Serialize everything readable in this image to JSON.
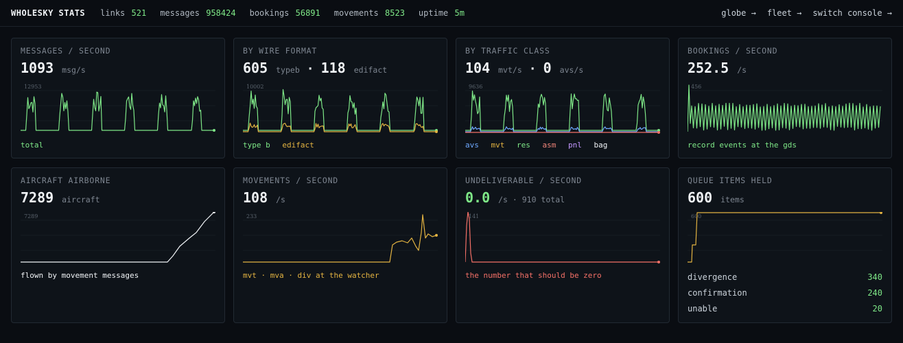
{
  "topbar": {
    "brand": "WHOLESKY STATS",
    "stats": [
      {
        "label": "links",
        "value": "521"
      },
      {
        "label": "messages",
        "value": "958424"
      },
      {
        "label": "bookings",
        "value": "56891"
      },
      {
        "label": "movements",
        "value": "8523"
      },
      {
        "label": "uptime",
        "value": "5m"
      }
    ],
    "nav": [
      "globe →",
      "fleet →",
      "switch console →"
    ]
  },
  "cards": {
    "messages": {
      "title": "MESSAGES / SECOND",
      "value": "1093",
      "unit": "msg/s",
      "ymax": "12953",
      "legend": [
        "total"
      ]
    },
    "wire": {
      "title": "BY WIRE FORMAT",
      "value1": "605",
      "unit1": "typeb",
      "sep": "·",
      "value2": "118",
      "unit2": "edifact",
      "ymax": "10002",
      "legend": [
        "type b",
        "edifact"
      ]
    },
    "traffic": {
      "title": "BY TRAFFIC CLASS",
      "value1": "104",
      "unit1": "mvt/s",
      "sep": "·",
      "value2": "0",
      "unit2": "avs/s",
      "ymax": "9636",
      "legend": [
        "avs",
        "mvt",
        "res",
        "asm",
        "pnl",
        "bag"
      ]
    },
    "bookings": {
      "title": "BOOKINGS / SECOND",
      "value": "252.5",
      "unit": "/s",
      "ymax": "456",
      "legend": [
        "record events at the gds"
      ]
    },
    "aircraft": {
      "title": "AIRCRAFT AIRBORNE",
      "value": "7289",
      "unit": "aircraft",
      "ymax": "7289",
      "legend": [
        "flown by movement messages"
      ]
    },
    "movements": {
      "title": "MOVEMENTS / SECOND",
      "value": "108",
      "unit": "/s",
      "ymax": "233",
      "legend": [
        "mvt · mva · div at the watcher"
      ]
    },
    "undeliverable": {
      "title": "UNDELIVERABLE / SECOND",
      "value": "0.0",
      "unit": "/s · 910 total",
      "ymax": "141",
      "legend": [
        "the number that should be zero"
      ]
    },
    "queue": {
      "title": "QUEUE ITEMS HELD",
      "value": "600",
      "unit": "items",
      "ymax": "600",
      "rows": [
        {
          "label": "divergence",
          "value": "340"
        },
        {
          "label": "confirmation",
          "value": "240"
        },
        {
          "label": "unable",
          "value": "20"
        }
      ]
    }
  },
  "colors": {
    "green": "#7ee787",
    "yellow": "#e3b341",
    "blue": "#6ea8fe",
    "red": "#f47067",
    "purple": "#c297ff",
    "white": "#f0f3f6",
    "salmon": "#f0857a"
  }
}
